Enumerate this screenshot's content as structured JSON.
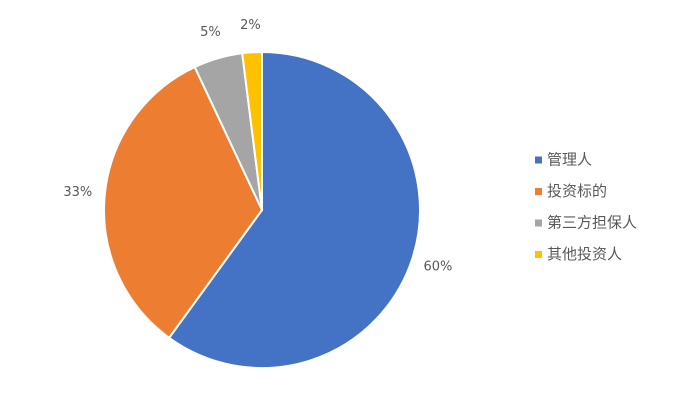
{
  "chart_data": {
    "type": "pie",
    "categories": [
      "管理人",
      "投资标的",
      "第三方担保人",
      "其他投资人"
    ],
    "values": [
      60,
      33,
      5,
      2
    ],
    "value_labels": [
      "60%",
      "33%",
      "5%",
      "2%"
    ],
    "colors": [
      "#4472c4",
      "#ed7d31",
      "#a5a5a5",
      "#ffc000"
    ],
    "legend": "right"
  }
}
